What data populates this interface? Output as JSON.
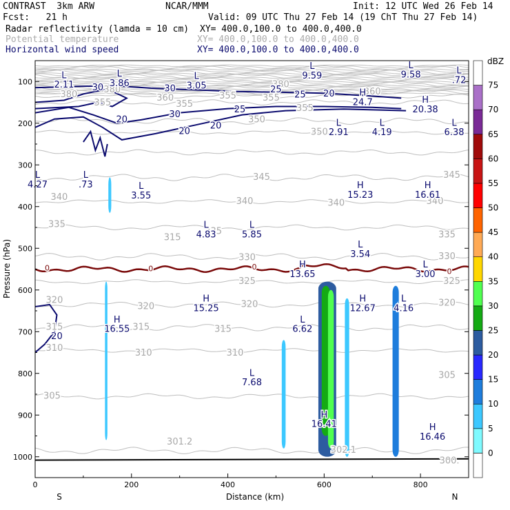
{
  "header": {
    "model": "CONTRAST  3km ARW",
    "center": "NCAR/MMM",
    "init": "Init: 12 UTC Wed 26 Feb 14",
    "fcst": "Fcst:   21 h",
    "valid": "Valid: 09 UTC Thu 27 Feb 14 (19 ChT Thu 27 Feb 14)",
    "fields": [
      {
        "label": "Radar reflectivity (lamda = 10 cm)",
        "xy": "XY= 400.0,100.0 to 400.0,400.0",
        "color": "#000000"
      },
      {
        "label": "Potential temperature",
        "xy": "XY= 400.0,100.0 to 400.0,400.0",
        "color": "#aaaaaa"
      },
      {
        "label": "Horizontal wind speed",
        "xy": "XY= 400.0,100.0 to 400.0,400.0",
        "color": "#0a0a6e"
      }
    ]
  },
  "chart_data": {
    "type": "cross-section",
    "xlabel": "Distance (km)",
    "ylabel": "Pressure (hPa)",
    "xlim": [
      0,
      900
    ],
    "ylim": [
      1050,
      50
    ],
    "xticks": [
      0,
      200,
      400,
      600,
      800
    ],
    "yticks": [
      100,
      200,
      300,
      400,
      500,
      600,
      700,
      800,
      900,
      1000
    ],
    "end_labels": {
      "left": "S",
      "right": "N"
    },
    "colorbar": {
      "unit": "dBZ",
      "levels": [
        0,
        5,
        10,
        15,
        20,
        25,
        30,
        35,
        40,
        45,
        50,
        55,
        60,
        65,
        70,
        75
      ],
      "colors": [
        "#ffffff",
        "#7ffaff",
        "#3cc8ff",
        "#1e7ddc",
        "#2828ff",
        "#2d5ca0",
        "#14aa14",
        "#50ff50",
        "#ffd700",
        "#ffaa55",
        "#ff6400",
        "#ff0000",
        "#c81414",
        "#a00a0a",
        "#7a2a96",
        "#aa70c8",
        "#ffffff"
      ]
    },
    "theta_labels": [
      {
        "x": 70,
        "p": 132,
        "t": "380"
      },
      {
        "x": 160,
        "p": 120,
        "t": "380"
      },
      {
        "x": 510,
        "p": 108,
        "t": "380"
      },
      {
        "x": 140,
        "p": 152,
        "t": "355"
      },
      {
        "x": 270,
        "p": 140,
        "t": "360"
      },
      {
        "x": 310,
        "p": 155,
        "t": "355"
      },
      {
        "x": 400,
        "p": 135,
        "t": "355"
      },
      {
        "x": 490,
        "p": 140,
        "t": "355"
      },
      {
        "x": 560,
        "p": 165,
        "t": "355"
      },
      {
        "x": 700,
        "p": 125,
        "t": "360"
      },
      {
        "x": 460,
        "p": 192,
        "t": "350"
      },
      {
        "x": 590,
        "p": 222,
        "t": "350"
      },
      {
        "x": 470,
        "p": 330,
        "t": "345"
      },
      {
        "x": 865,
        "p": 325,
        "t": "345"
      },
      {
        "x": 50,
        "p": 378,
        "t": "340"
      },
      {
        "x": 435,
        "p": 388,
        "t": "340"
      },
      {
        "x": 625,
        "p": 392,
        "t": "340"
      },
      {
        "x": 830,
        "p": 388,
        "t": "340"
      },
      {
        "x": 45,
        "p": 443,
        "t": "335"
      },
      {
        "x": 285,
        "p": 475,
        "t": "315"
      },
      {
        "x": 370,
        "p": 460,
        "t": "335"
      },
      {
        "x": 855,
        "p": 468,
        "t": "335"
      },
      {
        "x": 440,
        "p": 523,
        "t": "330"
      },
      {
        "x": 855,
        "p": 520,
        "t": "330"
      },
      {
        "x": 440,
        "p": 580,
        "t": "325"
      },
      {
        "x": 865,
        "p": 580,
        "t": "325"
      },
      {
        "x": 40,
        "p": 625,
        "t": "320"
      },
      {
        "x": 230,
        "p": 640,
        "t": "320"
      },
      {
        "x": 445,
        "p": 635,
        "t": "320"
      },
      {
        "x": 855,
        "p": 632,
        "t": "320"
      },
      {
        "x": 40,
        "p": 690,
        "t": "315"
      },
      {
        "x": 220,
        "p": 690,
        "t": "315"
      },
      {
        "x": 390,
        "p": 695,
        "t": "315"
      },
      {
        "x": 40,
        "p": 740,
        "t": "310"
      },
      {
        "x": 225,
        "p": 752,
        "t": "310"
      },
      {
        "x": 415,
        "p": 752,
        "t": "310"
      },
      {
        "x": 35,
        "p": 855,
        "t": "305"
      },
      {
        "x": 855,
        "p": 805,
        "t": "305"
      },
      {
        "x": 300,
        "p": 965,
        "t": "301.2"
      },
      {
        "x": 640,
        "p": 985,
        "t": "302.1"
      },
      {
        "x": 860,
        "p": 1010,
        "t": "300."
      }
    ],
    "wind_labels": [
      {
        "x": 130,
        "p": 115,
        "t": "30"
      },
      {
        "x": 280,
        "p": 118,
        "t": "30"
      },
      {
        "x": 500,
        "p": 120,
        "t": "25"
      },
      {
        "x": 550,
        "p": 133,
        "t": "25"
      },
      {
        "x": 610,
        "p": 130,
        "t": "20"
      },
      {
        "x": 425,
        "p": 168,
        "t": "25"
      },
      {
        "x": 290,
        "p": 180,
        "t": "30"
      },
      {
        "x": 180,
        "p": 192,
        "t": "20"
      },
      {
        "x": 375,
        "p": 207,
        "t": "20"
      },
      {
        "x": 310,
        "p": 220,
        "t": "20"
      },
      {
        "x": 45,
        "p": 712,
        "t": "20"
      }
    ],
    "freezing_labels": [
      {
        "x": 25,
        "p": 548,
        "t": "0"
      },
      {
        "x": 240,
        "p": 550,
        "t": "0"
      },
      {
        "x": 455,
        "p": 546,
        "t": "0"
      },
      {
        "x": 860,
        "p": 557,
        "t": "0"
      }
    ],
    "extrema": [
      {
        "x": 60,
        "p": 86,
        "k": "L",
        "v": "2.11"
      },
      {
        "x": 175,
        "p": 82,
        "k": "L",
        "v": "3.86"
      },
      {
        "x": 335,
        "p": 88,
        "k": "L",
        "v": "3.05"
      },
      {
        "x": 575,
        "p": 64,
        "k": "L",
        "v": "9.59"
      },
      {
        "x": 780,
        "p": 62,
        "k": "L",
        "v": "9.58"
      },
      {
        "x": 880,
        "p": 75,
        "k": "L",
        "v": ".72"
      },
      {
        "x": 680,
        "p": 128,
        "k": "H",
        "v": "24.7"
      },
      {
        "x": 810,
        "p": 145,
        "k": "H",
        "v": "20.38"
      },
      {
        "x": 630,
        "p": 200,
        "k": "L",
        "v": "2.91"
      },
      {
        "x": 720,
        "p": 200,
        "k": "L",
        "v": "4.19"
      },
      {
        "x": 870,
        "p": 200,
        "k": "L",
        "v": "6.38"
      },
      {
        "x": 5,
        "p": 325,
        "k": "L",
        "v": "4.27"
      },
      {
        "x": 105,
        "p": 325,
        "k": "L",
        "v": ".73"
      },
      {
        "x": 220,
        "p": 352,
        "k": "L",
        "v": "3.55"
      },
      {
        "x": 675,
        "p": 350,
        "k": "H",
        "v": "15.23"
      },
      {
        "x": 815,
        "p": 350,
        "k": "H",
        "v": "16.61"
      },
      {
        "x": 355,
        "p": 445,
        "k": "L",
        "v": "4.83"
      },
      {
        "x": 450,
        "p": 445,
        "k": "L",
        "v": "5.85"
      },
      {
        "x": 675,
        "p": 492,
        "k": "L",
        "v": "3.54"
      },
      {
        "x": 555,
        "p": 540,
        "k": "H",
        "v": "13.65"
      },
      {
        "x": 810,
        "p": 540,
        "k": "L",
        "v": "3.00"
      },
      {
        "x": 355,
        "p": 622,
        "k": "H",
        "v": "15.25"
      },
      {
        "x": 680,
        "p": 622,
        "k": "H",
        "v": "12.67"
      },
      {
        "x": 765,
        "p": 622,
        "k": "L",
        "v": "4.16"
      },
      {
        "x": 170,
        "p": 672,
        "k": "H",
        "v": "16.55"
      },
      {
        "x": 555,
        "p": 672,
        "k": "L",
        "v": "6.62"
      },
      {
        "x": 450,
        "p": 800,
        "k": "L",
        "v": "7.68"
      },
      {
        "x": 600,
        "p": 900,
        "k": "H",
        "v": "16.41"
      },
      {
        "x": 825,
        "p": 930,
        "k": "H",
        "v": "16.46"
      }
    ],
    "reflectivity_cells": [
      {
        "x": [
          588,
          625
        ],
        "p": [
          580,
          1000
        ],
        "dbz": 20
      },
      {
        "x": [
          595,
          612
        ],
        "p": [
          590,
          950
        ],
        "dbz": 25
      },
      {
        "x": [
          608,
          620
        ],
        "p": [
          600,
          980
        ],
        "dbz": 30
      },
      {
        "x": [
          512,
          520
        ],
        "p": [
          720,
          980
        ],
        "dbz": 5
      },
      {
        "x": [
          145,
          150
        ],
        "p": [
          580,
          960
        ],
        "dbz": 5
      },
      {
        "x": [
          152,
          158
        ],
        "p": [
          330,
          415
        ],
        "dbz": 5
      },
      {
        "x": [
          643,
          652
        ],
        "p": [
          620,
          1000
        ],
        "dbz": 5
      },
      {
        "x": [
          742,
          755
        ],
        "p": [
          590,
          1000
        ],
        "dbz": 10
      }
    ]
  }
}
